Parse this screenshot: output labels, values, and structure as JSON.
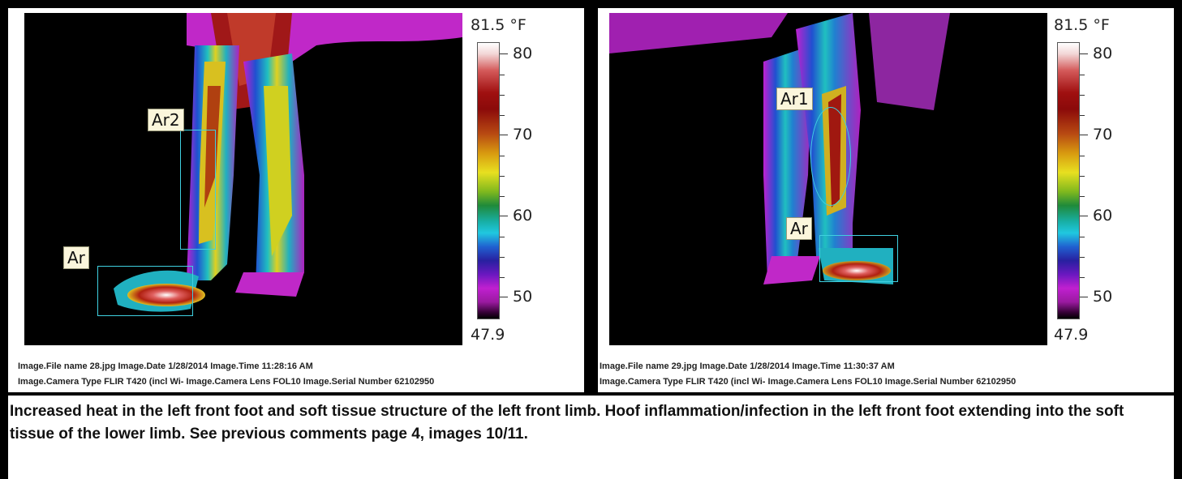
{
  "panels": [
    {
      "scale": {
        "max_label": "81.5 °F",
        "min_label": "47.9",
        "ticks": [
          "80",
          "70",
          "60",
          "50"
        ]
      },
      "roi_labels": [
        "Ar2",
        "Ar"
      ],
      "meta_line1": "Image.File name 28.jpg   Image.Date 1/28/2014   Image.Time 11:28:16 AM",
      "meta_line2": "Image.Camera Type FLIR T420 (incl Wi-   Image.Camera Lens FOL10   Image.Serial Number 62102950"
    },
    {
      "scale": {
        "max_label": "81.5 °F",
        "min_label": "47.9",
        "ticks": [
          "80",
          "70",
          "60",
          "50"
        ]
      },
      "roi_labels": [
        "Ar1",
        "Ar"
      ],
      "meta_line1": "Image.File name 29.jpg   Image.Date 1/28/2014   Image.Time 11:30:37 AM",
      "meta_line2": "Image.Camera Type FLIR T420 (incl Wi-   Image.Camera Lens FOL10   Image.Serial Number 62102950"
    }
  ],
  "caption": "Increased heat in the left front foot and soft tissue structure of the left front limb. Hoof inflammation/infection in the left front foot extending into the soft tissue of the lower limb. See previous comments page 4, images 10/11.",
  "colors": {
    "roi_box": "#3fd0e0",
    "background": "#000000",
    "panel": "#ffffff"
  }
}
